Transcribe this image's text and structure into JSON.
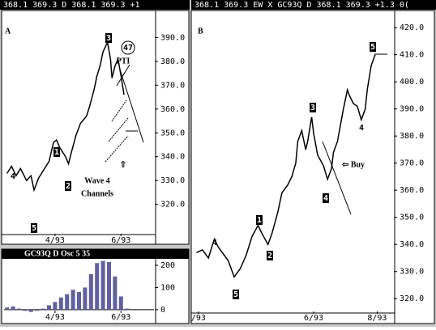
{
  "chart_data": [
    {
      "type": "line",
      "header": "368.1 369.3 D   368.1 369.3 +1",
      "title": "A",
      "x": [
        2,
        5,
        8,
        11,
        15,
        18,
        20,
        23,
        26,
        30,
        33,
        35,
        37,
        41,
        43,
        45,
        48,
        51,
        55,
        57,
        60,
        62,
        64,
        66,
        69,
        71,
        72,
        74,
        76,
        78,
        80
      ],
      "values": [
        333,
        336,
        332,
        335,
        330,
        332,
        326,
        331,
        334,
        338,
        346,
        347,
        344,
        340,
        337,
        342,
        349,
        354,
        357,
        361,
        368,
        374,
        378,
        384,
        388,
        381,
        373,
        378,
        381,
        374,
        366
      ],
      "color": "#000000",
      "xlim": [
        0,
        100
      ],
      "ylim": [
        308,
        401
      ],
      "xticks": [
        {
          "value": 34,
          "label": "4/93"
        },
        {
          "value": 78,
          "label": "6/93"
        }
      ],
      "yticks": [
        {
          "value": 320,
          "label": "320.0"
        },
        {
          "value": 330,
          "label": "330.0"
        },
        {
          "value": 340,
          "label": "340.0"
        },
        {
          "value": 350,
          "label": "350.0"
        },
        {
          "value": 360,
          "label": "360.0"
        },
        {
          "value": 370,
          "label": "370.0"
        },
        {
          "value": 380,
          "label": "380.0"
        },
        {
          "value": 390,
          "label": "390.0"
        }
      ],
      "annotations": [
        "47",
        "PTI",
        "Wave 4",
        "Channels",
        "⇧",
        "4",
        "5",
        "1",
        "2",
        "3"
      ]
    },
    {
      "type": "bar",
      "title": "GC93Q D Osc 5 35",
      "x": [
        2,
        6,
        10,
        14,
        18,
        22,
        26,
        30,
        34,
        38,
        42,
        46,
        50,
        54,
        58,
        62,
        66,
        70,
        74,
        78,
        82
      ],
      "values": [
        10,
        15,
        5,
        -5,
        -10,
        -5,
        5,
        20,
        35,
        55,
        70,
        90,
        80,
        100,
        160,
        210,
        220,
        215,
        150,
        60,
        5
      ],
      "color": "#6060a0",
      "xlim": [
        0,
        100
      ],
      "ylim": [
        -55,
        222
      ],
      "xticks": [
        {
          "value": 34,
          "label": "4/93"
        },
        {
          "value": 78,
          "label": "6/93"
        }
      ],
      "yticks": [
        0,
        100,
        200
      ]
    },
    {
      "type": "line",
      "header": "368.1 369.3  EW X GC93Q D  368.1 369.3 +1.3 0(",
      "title": "B",
      "x": [
        1,
        4,
        7,
        10,
        12,
        15,
        17,
        20,
        23,
        26,
        29,
        32,
        34,
        37,
        39,
        42,
        44,
        47,
        49,
        51,
        52,
        54,
        56,
        57,
        59,
        60,
        62,
        65,
        67,
        69,
        70,
        72,
        74,
        75,
        77,
        78,
        80,
        82,
        84,
        86,
        87,
        89,
        91
      ],
      "values": [
        337,
        338,
        335,
        342,
        339,
        336,
        334,
        328,
        331,
        336,
        343,
        347,
        344,
        340,
        344,
        352,
        359,
        362,
        365,
        370,
        378,
        382,
        375,
        378,
        387,
        381,
        373,
        369,
        364,
        368,
        374,
        378,
        386,
        390,
        397,
        395,
        392,
        391,
        386,
        390,
        397,
        406,
        410
      ],
      "color": "#000000",
      "xlim": [
        0,
        100
      ],
      "ylim": [
        315,
        426
      ],
      "xticks": [
        {
          "value": 2,
          "label": "/93"
        },
        {
          "value": 60,
          "label": "6/93"
        },
        {
          "value": 92,
          "label": "8/93"
        }
      ],
      "yticks": [
        {
          "value": 320,
          "label": "320.0"
        },
        {
          "value": 330,
          "label": "330.0"
        },
        {
          "value": 340,
          "label": "340.0"
        },
        {
          "value": 350,
          "label": "350.0"
        },
        {
          "value": 360,
          "label": "360.0"
        },
        {
          "value": 370,
          "label": "370.0"
        },
        {
          "value": 380,
          "label": "380.0"
        },
        {
          "value": 390,
          "label": "390.0"
        },
        {
          "value": 400,
          "label": "400.0"
        },
        {
          "value": 410,
          "label": "410.0"
        },
        {
          "value": 420,
          "label": "420.0"
        }
      ],
      "annotations": [
        "⇦ Buy",
        "1",
        "2",
        "3",
        "4",
        "5",
        "5",
        "4",
        "4"
      ]
    }
  ]
}
